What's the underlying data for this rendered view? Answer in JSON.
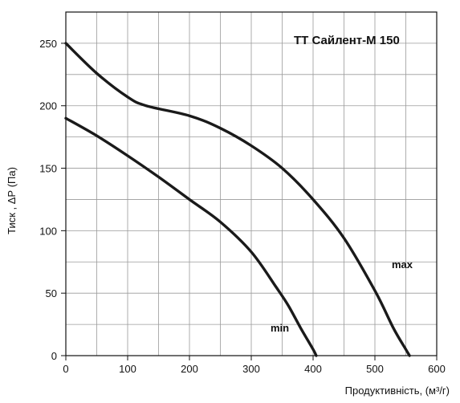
{
  "chart_data": {
    "type": "line",
    "title": "ТТ Сайлент-М 150",
    "xlabel": "Продуктивність, (м³/г)",
    "ylabel": "Тиск , ΔР (Па)",
    "xlim": [
      0,
      600
    ],
    "ylim": [
      0,
      275
    ],
    "x_ticks": [
      0,
      100,
      200,
      300,
      400,
      500,
      600
    ],
    "y_ticks": [
      0,
      50,
      100,
      150,
      200,
      250
    ],
    "x_tick_labels": [
      "0",
      "100",
      "200",
      "300",
      "400",
      "500",
      "600"
    ],
    "y_tick_labels": [
      "0",
      "50",
      "100",
      "150",
      "200",
      "250"
    ],
    "grid": true,
    "series": [
      {
        "name": "max",
        "x": [
          0,
          50,
          100,
          130,
          200,
          250,
          300,
          350,
          400,
          450,
          500,
          530,
          550,
          556
        ],
        "y": [
          250,
          226,
          207,
          200,
          192,
          182,
          168,
          150,
          125,
          94,
          52,
          22,
          5,
          0
        ]
      },
      {
        "name": "min",
        "x": [
          0,
          50,
          100,
          150,
          200,
          250,
          300,
          340,
          360,
          380,
          400,
          405
        ],
        "y": [
          190,
          176,
          160,
          143,
          125,
          107,
          83,
          55,
          40,
          22,
          5,
          0
        ]
      }
    ]
  },
  "colors": {
    "curve": "#1a1a1a",
    "grid": "#9a9a9a",
    "axis": "#111111"
  }
}
